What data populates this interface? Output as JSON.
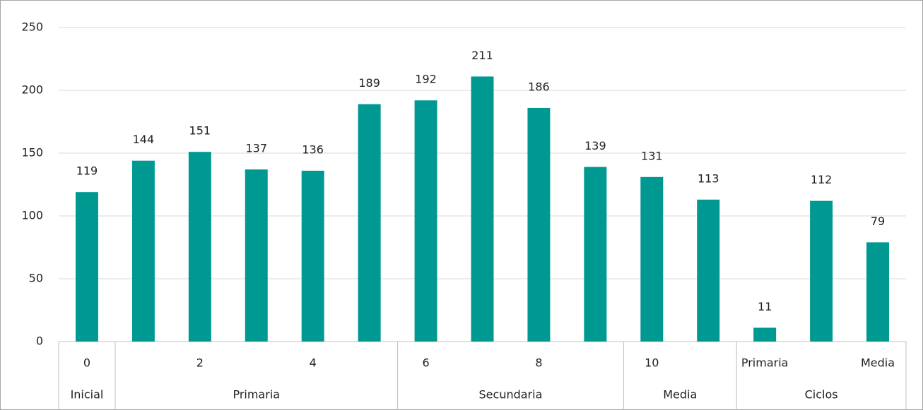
{
  "chart_data": {
    "type": "bar",
    "categories": [
      "0",
      null,
      "2",
      null,
      "4",
      null,
      "6",
      null,
      "8",
      null,
      "10",
      null,
      "Primaria",
      null,
      "Media"
    ],
    "values": [
      119,
      144,
      151,
      137,
      136,
      189,
      192,
      211,
      186,
      139,
      131,
      113,
      11,
      112,
      79
    ],
    "groups": [
      {
        "name": "Inicial",
        "count": 1
      },
      {
        "name": "Primaria",
        "count": 5
      },
      {
        "name": "Secundaria",
        "count": 4
      },
      {
        "name": "Media",
        "count": 2
      },
      {
        "name": "Ciclos",
        "count": 3
      }
    ],
    "color": "#009992",
    "ylim": [
      0,
      250
    ],
    "yticks": [
      0,
      50,
      100,
      150,
      200,
      250
    ],
    "grid": true
  }
}
